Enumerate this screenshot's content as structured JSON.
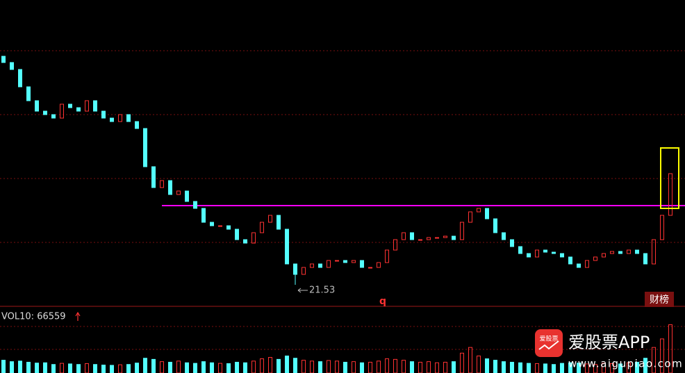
{
  "chart_data": {
    "type": "candlestick",
    "open": [
      31.4,
      31.13,
      30.83,
      30.08,
      29.48,
      29.03,
      28.88,
      28.73,
      29.33,
      29.18,
      29.03,
      29.48,
      29.03,
      28.73,
      28.58,
      28.88,
      28.58,
      28.28,
      26.63,
      25.73,
      26.03,
      25.43,
      25.58,
      25.13,
      24.83,
      24.23,
      24.08,
      24.08,
      23.93,
      23.48,
      23.33,
      23.78,
      24.23,
      24.53,
      23.93,
      22.43,
      21.98,
      22.28,
      22.43,
      22.28,
      22.58,
      22.58,
      22.49,
      22.58,
      22.28,
      22.28,
      22.49,
      23.03,
      23.48,
      23.78,
      23.48,
      23.48,
      23.57,
      23.57,
      23.63,
      23.48,
      24.23,
      24.68,
      24.83,
      24.38,
      23.78,
      23.48,
      23.18,
      22.88,
      22.73,
      23.03,
      22.94,
      22.88,
      22.73,
      22.43,
      22.28,
      22.58,
      22.73,
      22.88,
      22.97,
      22.88,
      23.03,
      22.88,
      22.43,
      23.48,
      24.53
    ],
    "close": [
      31.13,
      30.83,
      30.08,
      29.48,
      29.03,
      28.88,
      28.73,
      29.33,
      29.18,
      29.03,
      29.48,
      29.03,
      28.73,
      28.58,
      28.88,
      28.58,
      28.28,
      26.63,
      25.73,
      26.03,
      25.43,
      25.58,
      25.13,
      24.83,
      24.23,
      24.08,
      24.08,
      23.93,
      23.48,
      23.33,
      23.78,
      24.23,
      24.53,
      23.93,
      22.43,
      21.98,
      22.28,
      22.43,
      22.28,
      22.58,
      22.58,
      22.49,
      22.58,
      22.28,
      22.28,
      22.49,
      23.03,
      23.48,
      23.78,
      23.48,
      23.48,
      23.57,
      23.57,
      23.63,
      23.48,
      24.23,
      24.68,
      24.83,
      24.38,
      23.78,
      23.48,
      23.18,
      22.88,
      22.73,
      23.03,
      22.94,
      22.88,
      22.73,
      22.43,
      22.28,
      22.58,
      22.73,
      22.88,
      22.97,
      22.88,
      23.03,
      22.88,
      22.43,
      23.48,
      24.53,
      26.33
    ],
    "volume": [
      45000,
      40000,
      42000,
      38000,
      35000,
      36000,
      30000,
      34000,
      32000,
      30000,
      33000,
      30000,
      28000,
      27000,
      29000,
      30000,
      35000,
      52000,
      48000,
      40000,
      38000,
      42000,
      36000,
      34000,
      40000,
      36000,
      34000,
      33000,
      38000,
      36000,
      42000,
      50000,
      55000,
      48000,
      60000,
      52000,
      45000,
      42000,
      40000,
      44000,
      42000,
      38000,
      40000,
      36000,
      38000,
      42000,
      50000,
      48000,
      45000,
      40000,
      38000,
      40000,
      36000,
      38000,
      40000,
      70000,
      90000,
      60000,
      50000,
      45000,
      40000,
      38000,
      36000,
      34000,
      33000,
      32000,
      30000,
      34000,
      36000,
      35000,
      32000,
      30000,
      34000,
      33000,
      32000,
      36000,
      38000,
      52000,
      90000,
      120000,
      170000
    ],
    "low_point": {
      "index": 35,
      "value": 21.53
    },
    "support_line": 24.95,
    "ylim": [
      20.6,
      33.83
    ],
    "vol_ylim": [
      0,
      220000
    ],
    "up_color": "#ff3232",
    "down_color": "#54ffff",
    "support_color": "#ff00ff",
    "volume_label": "VOL10: 66559",
    "marker": "q",
    "badge": "财榜"
  },
  "watermark": {
    "icon": "爱股票",
    "name": "爱股票APP",
    "url": "www.aigupiao.com"
  }
}
